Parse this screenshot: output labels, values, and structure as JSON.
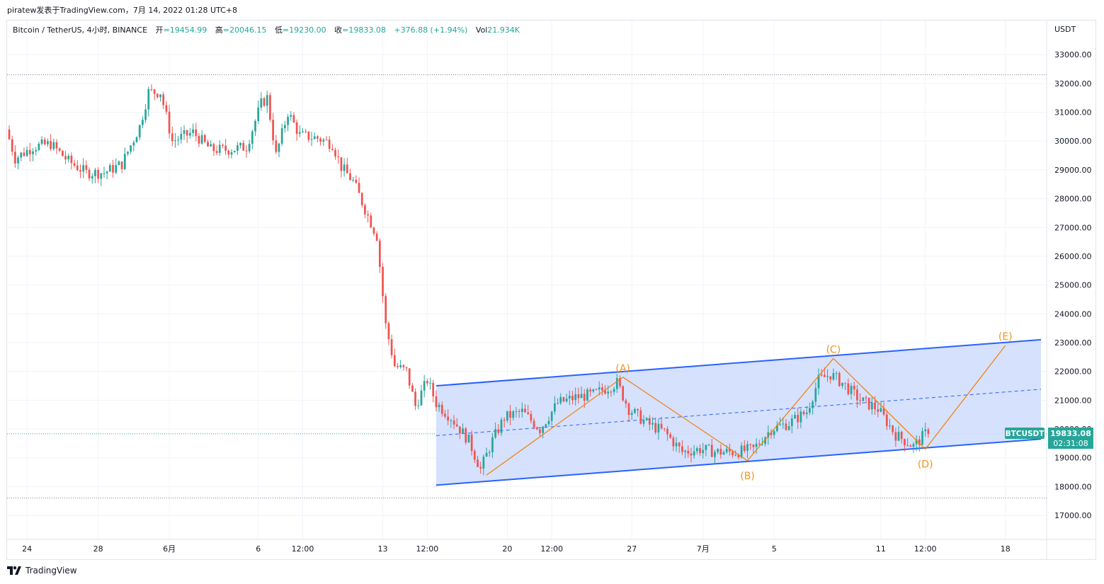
{
  "header": {
    "publish_line": "piratew发表于TradingView.com，7月 14, 2022 01:28 UTC+8"
  },
  "symbol_bar": {
    "symbol": "Bitcoin / TetherUS, 4小时, BINANCE",
    "open_label": "开",
    "open_value": "=19454.99",
    "high_label": "高",
    "high_value": "=20046.15",
    "low_label": "低",
    "low_value": "=19230.00",
    "close_label": "收",
    "close_value": "=19833.08",
    "change": "+376.88 (+1.94%)",
    "vol_label": "Vol",
    "vol_value": "21.934K"
  },
  "price_axis": {
    "currency": "USDT",
    "ticks": [
      "33000.00",
      "32000.00",
      "31000.00",
      "30000.00",
      "29000.00",
      "28000.00",
      "27000.00",
      "26000.00",
      "25000.00",
      "24000.00",
      "23000.00",
      "22000.00",
      "21000.00",
      "20000.00",
      "19000.00",
      "18000.00",
      "17000.00"
    ],
    "last_price_ticker": "BTCUSDT",
    "last_price": "19833.08",
    "countdown": "02:31:08"
  },
  "time_axis": {
    "labels": [
      "24",
      "28",
      "6月",
      "6",
      "12:00",
      "13",
      "12:00",
      "20",
      "12:00",
      "27",
      "7月",
      "5",
      "11",
      "12:00",
      "18"
    ]
  },
  "footer": {
    "brand": "TradingView"
  },
  "colors": {
    "up": "#26a69a",
    "down": "#ef5350",
    "channel_line": "#2962ff",
    "channel_fill": "#cfdcfd",
    "wave_line": "#f57c00",
    "wave_label": "#f7931a",
    "price_tag": "#26a69a",
    "grid": "#f0f3fa",
    "text": "#131722"
  },
  "chart_data": {
    "type": "candlestick",
    "title": "Bitcoin / TetherUS, 4小时, BINANCE",
    "ylabel": "USDT",
    "ylim": [
      16200,
      34000
    ],
    "grid": true,
    "price_path_anchors": [
      [
        "2022-05-23 00:00",
        30400
      ],
      [
        "2022-05-23 12:00",
        29400
      ],
      [
        "2022-05-24 12:00",
        29800
      ],
      [
        "2022-05-25 12:00",
        29900
      ],
      [
        "2022-05-26 12:00",
        29300
      ],
      [
        "2022-05-27 12:00",
        28900
      ],
      [
        "2022-05-28 12:00",
        28900
      ],
      [
        "2022-05-29 12:00",
        29200
      ],
      [
        "2022-05-30 12:00",
        30500
      ],
      [
        "2022-05-31 00:00",
        31700
      ],
      [
        "2022-05-31 16:00",
        31700
      ],
      [
        "2022-06-01 08:00",
        30000
      ],
      [
        "2022-06-02 12:00",
        30300
      ],
      [
        "2022-06-03 12:00",
        29700
      ],
      [
        "2022-06-04 12:00",
        29700
      ],
      [
        "2022-06-05 12:00",
        29800
      ],
      [
        "2022-06-06 08:00",
        31300
      ],
      [
        "2022-06-06 16:00",
        31500
      ],
      [
        "2022-06-07 04:00",
        29500
      ],
      [
        "2022-06-07 20:00",
        31000
      ],
      [
        "2022-06-08 12:00",
        30200
      ],
      [
        "2022-06-09 12:00",
        30100
      ],
      [
        "2022-06-10 08:00",
        29900
      ],
      [
        "2022-06-10 20:00",
        29100
      ],
      [
        "2022-06-11 12:00",
        28600
      ],
      [
        "2022-06-12 08:00",
        27400
      ],
      [
        "2022-06-12 20:00",
        26700
      ],
      [
        "2022-06-13 08:00",
        23600
      ],
      [
        "2022-06-13 20:00",
        22200
      ],
      [
        "2022-06-14 12:00",
        22000
      ],
      [
        "2022-06-15 00:00",
        20800
      ],
      [
        "2022-06-15 16:00",
        21700
      ],
      [
        "2022-06-16 04:00",
        20900
      ],
      [
        "2022-06-17 00:00",
        20400
      ],
      [
        "2022-06-18 00:00",
        19600
      ],
      [
        "2022-06-18 16:00",
        18600
      ],
      [
        "2022-06-19 08:00",
        19600
      ],
      [
        "2022-06-20 00:00",
        20400
      ],
      [
        "2022-06-21 00:00",
        20600
      ],
      [
        "2022-06-22 00:00",
        20000
      ],
      [
        "2022-06-23 00:00",
        20900
      ],
      [
        "2022-06-24 00:00",
        21100
      ],
      [
        "2022-06-25 00:00",
        21200
      ],
      [
        "2022-06-26 08:00",
        21600
      ],
      [
        "2022-06-27 00:00",
        20700
      ],
      [
        "2022-06-28 00:00",
        20200
      ],
      [
        "2022-06-29 00:00",
        19900
      ],
      [
        "2022-06-30 00:00",
        19200
      ],
      [
        "2022-07-01 00:00",
        19300
      ],
      [
        "2022-07-02 00:00",
        19200
      ],
      [
        "2022-07-03 00:00",
        19200
      ],
      [
        "2022-07-04 00:00",
        19300
      ],
      [
        "2022-07-05 00:00",
        20000
      ],
      [
        "2022-07-06 00:00",
        20200
      ],
      [
        "2022-07-07 00:00",
        20600
      ],
      [
        "2022-07-07 16:00",
        21700
      ],
      [
        "2022-07-08 08:00",
        21900
      ],
      [
        "2022-07-09 00:00",
        21600
      ],
      [
        "2022-07-10 00:00",
        21000
      ],
      [
        "2022-07-11 00:00",
        20700
      ],
      [
        "2022-07-12 00:00",
        19800
      ],
      [
        "2022-07-13 00:00",
        19400
      ],
      [
        "2022-07-13 16:00",
        19833.08
      ]
    ],
    "channel": {
      "upper": [
        [
          "2022-06-16 00:00",
          21500
        ],
        [
          "2022-07-20 00:00",
          23100
        ]
      ],
      "lower": [
        [
          "2022-06-16 00:00",
          18050
        ],
        [
          "2022-07-20 00:00",
          19650
        ]
      ],
      "median": [
        [
          "2022-06-16 00:00",
          19770
        ],
        [
          "2022-07-20 00:00",
          21380
        ]
      ]
    },
    "wave_points": [
      {
        "label": "",
        "time": "2022-06-18 20:00",
        "price": 18400
      },
      {
        "label": "(A)",
        "time": "2022-06-26 12:00",
        "price": 21800
      },
      {
        "label": "(B)",
        "time": "2022-07-03 12:00",
        "price": 18900
      },
      {
        "label": "(C)",
        "time": "2022-07-08 08:00",
        "price": 22450
      },
      {
        "label": "(D)",
        "time": "2022-07-13 12:00",
        "price": 19300
      },
      {
        "label": "(E)",
        "time": "2022-07-18 00:00",
        "price": 22900
      }
    ],
    "horizontal_levels": [
      32300,
      19833.08,
      17600
    ],
    "last_close": 19833.08
  }
}
